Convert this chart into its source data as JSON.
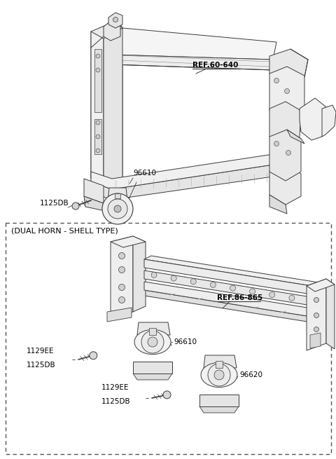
{
  "bg_color": "#ffffff",
  "line_color": "#3a3a3a",
  "text_color": "#000000",
  "fig_width": 4.8,
  "fig_height": 6.55,
  "dpi": 100,
  "upper": {
    "ref_label": "REF.60-640",
    "part_96610": "96610",
    "part_1125DB": "1125DB"
  },
  "lower": {
    "box_label": "(DUAL HORN - SHELL TYPE)",
    "ref_label": "REF.86-865",
    "part_96610": "96610",
    "part_96620": "96620",
    "part_1129EE_a": "1129EE",
    "part_1125DB_a": "1125DB",
    "part_1129EE_b": "1129EE",
    "part_1125DB_b": "1125DB"
  }
}
